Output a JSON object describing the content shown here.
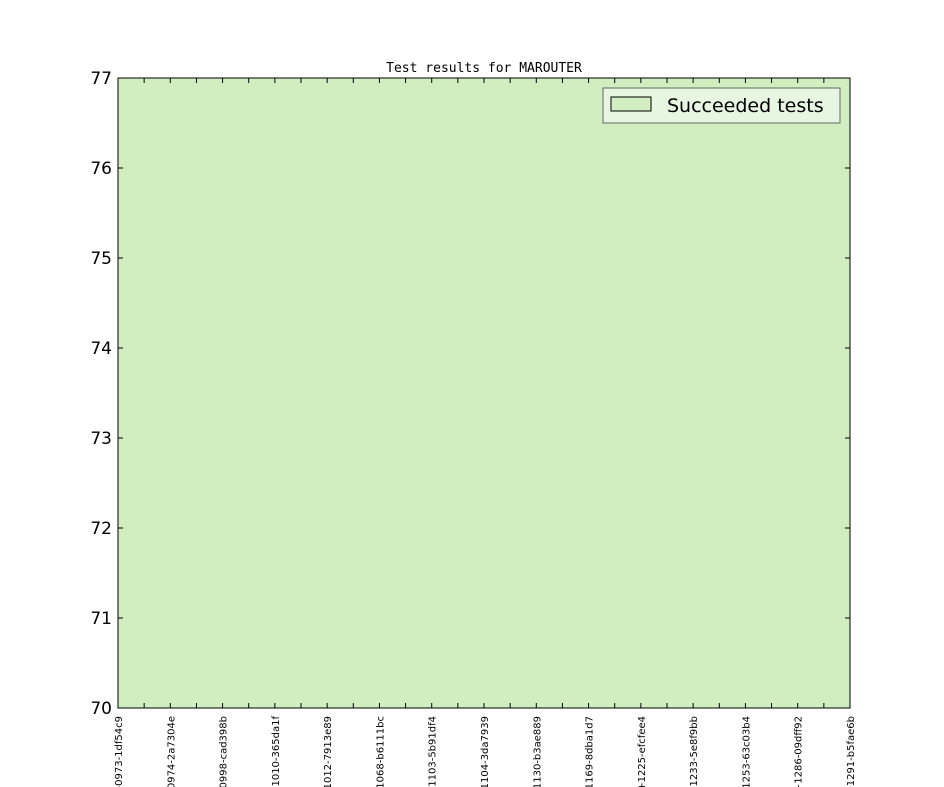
{
  "chart_data": {
    "type": "area",
    "title": "Test results for MAROUTER",
    "xlabel": "",
    "ylabel": "",
    "ylim": [
      70,
      77
    ],
    "yticks": [
      70,
      71,
      72,
      73,
      74,
      75,
      76,
      77
    ],
    "categories": [
      "-0973-1df54c9",
      "0974-2a7304e",
      "0998-cad398b",
      "-1010-365da1f",
      "1012-7913e89",
      "1068-b6111bc",
      "·1103-5b91df4",
      "1104-3da7939",
      "1130-b3ae889",
      "1169-8dba1d7",
      "+1225-efcfee4",
      "-1233-5e8f9bb",
      "1253-63c03b4",
      "+1286-09dff92",
      "-1291-b5fae6b"
    ],
    "series": [
      {
        "name": "Succeeded tests",
        "values": [
          77,
          77,
          77,
          77,
          77,
          77,
          77,
          77,
          77,
          77,
          77,
          77,
          77,
          77,
          77
        ],
        "color": "#d0eec0"
      }
    ],
    "grid": false,
    "legend_placement": "top-right"
  }
}
